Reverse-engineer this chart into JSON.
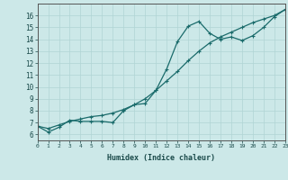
{
  "xlabel": "Humidex (Indice chaleur)",
  "ylabel": "",
  "bg_color": "#cce8e8",
  "line_color": "#1a6b6b",
  "grid_color": "#b0d4d4",
  "x_data": [
    0,
    1,
    2,
    3,
    4,
    5,
    6,
    7,
    8,
    9,
    10,
    11,
    12,
    13,
    14,
    15,
    16,
    17,
    18,
    19,
    20,
    21,
    22,
    23
  ],
  "y_series1": [
    6.7,
    6.2,
    6.6,
    7.2,
    7.1,
    7.1,
    7.1,
    7.0,
    8.0,
    8.5,
    8.6,
    9.7,
    11.5,
    13.8,
    15.1,
    15.5,
    14.5,
    14.0,
    14.2,
    13.9,
    14.3,
    15.0,
    15.9,
    16.5
  ],
  "y_series2": [
    6.7,
    6.5,
    6.8,
    7.1,
    7.3,
    7.5,
    7.6,
    7.8,
    8.1,
    8.5,
    9.0,
    9.7,
    10.5,
    11.3,
    12.2,
    13.0,
    13.7,
    14.2,
    14.6,
    15.0,
    15.4,
    15.7,
    16.0,
    16.5
  ],
  "xlim": [
    0,
    23
  ],
  "ylim": [
    5.5,
    17
  ],
  "yticks": [
    6,
    7,
    8,
    9,
    10,
    11,
    12,
    13,
    14,
    15,
    16
  ],
  "xticks": [
    0,
    1,
    2,
    3,
    4,
    5,
    6,
    7,
    8,
    9,
    10,
    11,
    12,
    13,
    14,
    15,
    16,
    17,
    18,
    19,
    20,
    21,
    22,
    23
  ]
}
